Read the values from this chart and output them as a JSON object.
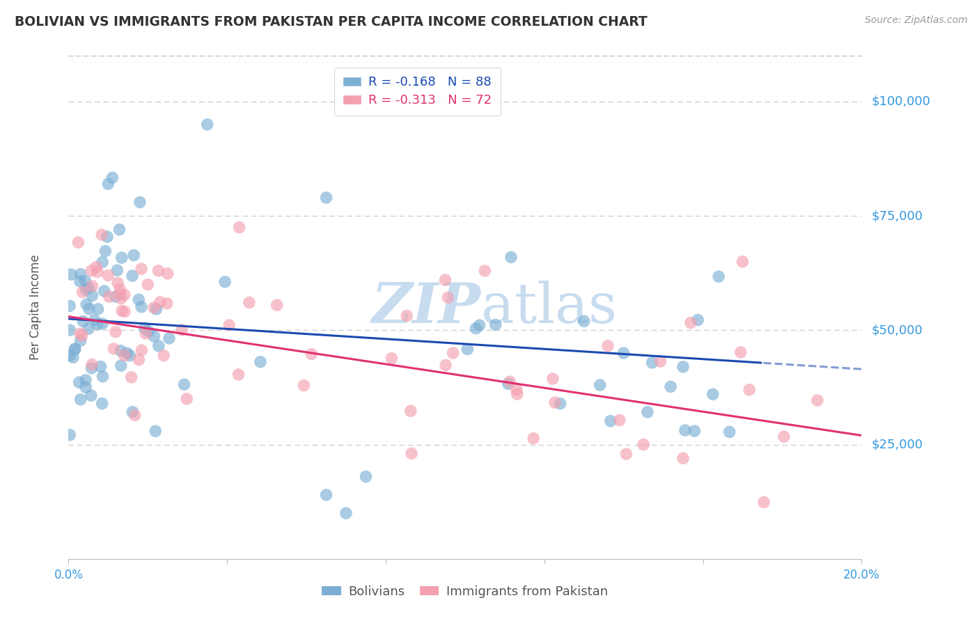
{
  "title": "BOLIVIAN VS IMMIGRANTS FROM PAKISTAN PER CAPITA INCOME CORRELATION CHART",
  "source": "Source: ZipAtlas.com",
  "ylabel": "Per Capita Income",
  "y_ticks": [
    25000,
    50000,
    75000,
    100000
  ],
  "y_tick_labels": [
    "$25,000",
    "$50,000",
    "$75,000",
    "$100,000"
  ],
  "x_range": [
    0.0,
    0.2
  ],
  "y_range": [
    0,
    110000
  ],
  "legend1_label": "R = -0.168   N = 88",
  "legend2_label": "R = -0.313   N = 72",
  "legend_label1": "Bolivians",
  "legend_label2": "Immigrants from Pakistan",
  "blue_color": "#7BAFD4",
  "pink_color": "#F4A0B0",
  "blue_line_color": "#1A4AB0",
  "pink_line_color": "#E03070",
  "axis_label_color": "#3399DD",
  "watermark_color": "#C8DCF0",
  "blue_R": -0.168,
  "blue_N": 88,
  "pink_R": -0.313,
  "pink_N": 72,
  "blue_intercept": 52500,
  "blue_slope": -55000,
  "pink_intercept": 53000,
  "pink_slope": -130000,
  "blue_solid_cutoff": 0.175
}
